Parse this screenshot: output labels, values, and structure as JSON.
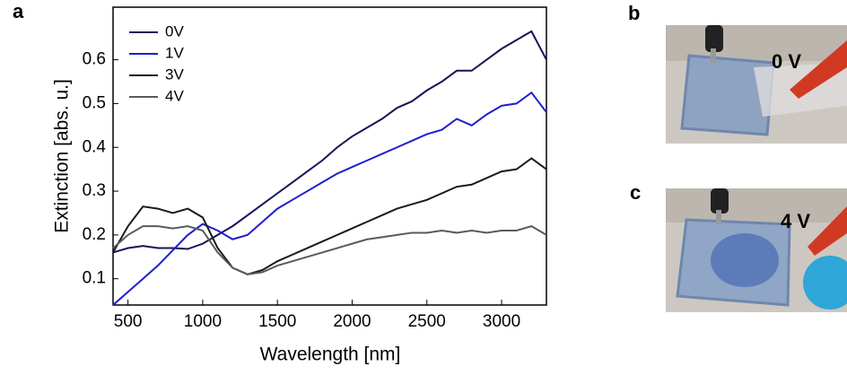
{
  "chart_data": {
    "type": "line",
    "x_label": "Wavelength [nm]",
    "y_label": "Extinction [abs. u.]",
    "x": [
      400,
      500,
      600,
      700,
      800,
      900,
      1000,
      1100,
      1200,
      1300,
      1400,
      1500,
      1600,
      1700,
      1800,
      1900,
      2000,
      2100,
      2200,
      2300,
      2400,
      2500,
      2600,
      2700,
      2800,
      2900,
      3000,
      3100,
      3200,
      3300
    ],
    "series": [
      {
        "name": "0V",
        "color": "#14145a",
        "values": [
          0.16,
          0.17,
          0.175,
          0.17,
          0.17,
          0.168,
          0.18,
          0.2,
          0.22,
          0.245,
          0.27,
          0.295,
          0.32,
          0.345,
          0.37,
          0.4,
          0.425,
          0.445,
          0.465,
          0.49,
          0.505,
          0.53,
          0.55,
          0.575,
          0.575,
          0.6,
          0.625,
          0.645,
          0.665,
          0.6
        ]
      },
      {
        "name": "1V",
        "color": "#1f1fcc",
        "values": [
          0.04,
          0.07,
          0.1,
          0.13,
          0.165,
          0.2,
          0.225,
          0.21,
          0.19,
          0.2,
          0.23,
          0.26,
          0.28,
          0.3,
          0.32,
          0.34,
          0.355,
          0.37,
          0.385,
          0.4,
          0.415,
          0.43,
          0.44,
          0.465,
          0.45,
          0.475,
          0.495,
          0.5,
          0.525,
          0.48
        ]
      },
      {
        "name": "3V",
        "color": "#1a1a1a",
        "values": [
          0.16,
          0.22,
          0.265,
          0.26,
          0.25,
          0.26,
          0.24,
          0.17,
          0.125,
          0.11,
          0.12,
          0.14,
          0.155,
          0.17,
          0.185,
          0.2,
          0.215,
          0.23,
          0.245,
          0.26,
          0.27,
          0.28,
          0.295,
          0.31,
          0.315,
          0.33,
          0.345,
          0.35,
          0.375,
          0.35
        ]
      },
      {
        "name": "4V",
        "color": "#5a5a5a",
        "values": [
          0.17,
          0.2,
          0.22,
          0.22,
          0.215,
          0.22,
          0.21,
          0.16,
          0.125,
          0.11,
          0.115,
          0.13,
          0.14,
          0.15,
          0.16,
          0.17,
          0.18,
          0.19,
          0.195,
          0.2,
          0.205,
          0.205,
          0.21,
          0.205,
          0.21,
          0.205,
          0.21,
          0.21,
          0.22,
          0.2
        ]
      }
    ],
    "xlim": [
      400,
      3300
    ],
    "ylim": [
      0.04,
      0.72
    ],
    "xticks": [
      500,
      1000,
      1500,
      2000,
      2500,
      3000
    ],
    "yticks": [
      0.1,
      0.2,
      0.3,
      0.4,
      0.5,
      0.6
    ],
    "legend": "upper left"
  },
  "panel_labels": [
    "a",
    "b",
    "c"
  ],
  "photo_labels": [
    "0 V",
    "4 V"
  ]
}
